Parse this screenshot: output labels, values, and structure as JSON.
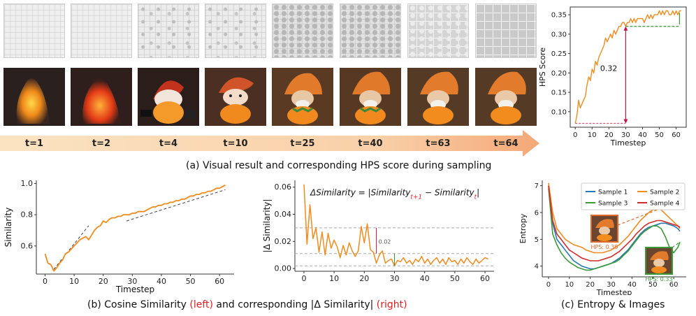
{
  "panel_a": {
    "steps": [
      "t=1",
      "t=2",
      "t=4",
      "t=10",
      "t=25",
      "t=40",
      "t=63",
      "t=64"
    ],
    "caption": "(a) Visual result and corresponding HPS score during sampling"
  },
  "panel_b": {
    "caption_prefix": "(b) Cosine Similarity ",
    "caption_left": "(left)",
    "caption_mid": " and corresponding |Δ Similarity| ",
    "caption_right": "(right)"
  },
  "panel_c": {
    "caption": "(c) Entropy & Images",
    "hps_badge_a": "HPS: 0.39",
    "hps_badge_b": "HPS: 0.33"
  },
  "colors": {
    "orange": "#f08c1e",
    "red": "#d32c2c",
    "green": "#3a9a3a",
    "blue": "#2878b8",
    "dashed": "#555555"
  },
  "chart_data": [
    {
      "id": "hps",
      "type": "line",
      "title": "",
      "xlabel": "Timestep",
      "ylabel": "HPS Score",
      "xlim": [
        -3,
        66
      ],
      "ylim": [
        0.06,
        0.37
      ],
      "xticks": [
        0,
        10,
        20,
        30,
        40,
        50,
        60
      ],
      "yticks": [
        0.1,
        0.15,
        0.2,
        0.25,
        0.3,
        0.35
      ],
      "ytick_labels": [
        "0.10",
        "0.15",
        "0.20",
        "0.25",
        "0.30",
        "0.35"
      ],
      "annotation": "0.32",
      "annotation_arrow": {
        "x": 30,
        "from": 0.07,
        "to": 0.32
      },
      "series": [
        {
          "name": "HPS",
          "x": [
            0,
            1,
            2,
            3,
            4,
            5,
            6,
            7,
            8,
            9,
            10,
            11,
            12,
            13,
            14,
            15,
            16,
            17,
            18,
            19,
            20,
            21,
            22,
            23,
            24,
            25,
            26,
            27,
            28,
            29,
            30,
            31,
            32,
            33,
            34,
            35,
            36,
            37,
            38,
            39,
            40,
            41,
            42,
            43,
            44,
            45,
            46,
            47,
            48,
            49,
            50,
            51,
            52,
            53,
            54,
            55,
            56,
            57,
            58,
            59,
            60,
            61,
            62,
            63
          ],
          "values": [
            0.07,
            0.09,
            0.13,
            0.11,
            0.12,
            0.13,
            0.14,
            0.17,
            0.19,
            0.18,
            0.21,
            0.2,
            0.23,
            0.22,
            0.24,
            0.25,
            0.26,
            0.27,
            0.29,
            0.28,
            0.29,
            0.3,
            0.29,
            0.31,
            0.3,
            0.31,
            0.32,
            0.32,
            0.33,
            0.33,
            0.32,
            0.33,
            0.33,
            0.34,
            0.33,
            0.34,
            0.33,
            0.34,
            0.34,
            0.34,
            0.34,
            0.33,
            0.34,
            0.35,
            0.34,
            0.35,
            0.34,
            0.35,
            0.35,
            0.35,
            0.36,
            0.35,
            0.36,
            0.35,
            0.36,
            0.36,
            0.35,
            0.35,
            0.36,
            0.35,
            0.36,
            0.35,
            0.36,
            0.36
          ]
        }
      ]
    },
    {
      "id": "similarity",
      "type": "line",
      "xlabel": "Timestep",
      "ylabel": "Similarity",
      "xlim": [
        -3,
        65
      ],
      "ylim": [
        0.42,
        1.02
      ],
      "xticks": [
        0,
        10,
        20,
        30,
        40,
        50,
        60
      ],
      "yticks": [
        0.6,
        0.8,
        1.0
      ],
      "ytick_labels": [
        "0.6",
        "0.8",
        "1.0"
      ],
      "series": [
        {
          "name": "Similarity",
          "x": [
            0,
            1,
            2,
            3,
            4,
            5,
            6,
            7,
            8,
            9,
            10,
            11,
            12,
            13,
            14,
            15,
            16,
            17,
            18,
            19,
            20,
            21,
            22,
            23,
            24,
            25,
            26,
            27,
            28,
            29,
            30,
            31,
            32,
            33,
            34,
            35,
            36,
            37,
            38,
            39,
            40,
            41,
            42,
            43,
            44,
            45,
            46,
            47,
            48,
            49,
            50,
            51,
            52,
            53,
            54,
            55,
            56,
            57,
            58,
            59,
            60,
            61,
            62
          ],
          "values": [
            0.55,
            0.49,
            0.48,
            0.44,
            0.46,
            0.49,
            0.51,
            0.55,
            0.56,
            0.58,
            0.6,
            0.62,
            0.64,
            0.65,
            0.66,
            0.64,
            0.67,
            0.7,
            0.72,
            0.73,
            0.76,
            0.75,
            0.77,
            0.78,
            0.78,
            0.79,
            0.79,
            0.8,
            0.8,
            0.8,
            0.81,
            0.81,
            0.82,
            0.82,
            0.82,
            0.83,
            0.84,
            0.85,
            0.85,
            0.86,
            0.86,
            0.87,
            0.87,
            0.88,
            0.88,
            0.89,
            0.89,
            0.9,
            0.9,
            0.91,
            0.92,
            0.92,
            0.93,
            0.93,
            0.94,
            0.94,
            0.95,
            0.95,
            0.96,
            0.97,
            0.97,
            0.98,
            0.99
          ]
        }
      ],
      "trend_lines": [
        {
          "x": [
            3,
            15
          ],
          "values": [
            0.45,
            0.73
          ]
        },
        {
          "x": [
            28,
            62
          ],
          "values": [
            0.76,
            0.96
          ]
        }
      ]
    },
    {
      "id": "delta_similarity",
      "type": "line",
      "xlabel": "",
      "ylabel": "|Δ Similarity|",
      "xlim": [
        -3,
        63
      ],
      "ylim": [
        -0.002,
        0.065
      ],
      "xticks": [
        0,
        10,
        20,
        30,
        40,
        50,
        60
      ],
      "yticks": [
        0.0,
        0.02,
        0.04,
        0.06
      ],
      "ytick_labels": [
        "0.00",
        "0.02",
        "0.04",
        "0.06"
      ],
      "formula_prefix": "ΔSimilarity = |Similarity",
      "formula_sub1": "t+1",
      "formula_mid": " − Similarity",
      "formula_sub2": "t",
      "formula_suffix": "|",
      "annotation": "0.02",
      "hlines": [
        0.03,
        0.011,
        0.002
      ],
      "series": [
        {
          "name": "|Δ Similarity|",
          "x": [
            0,
            1,
            2,
            3,
            4,
            5,
            6,
            7,
            8,
            9,
            10,
            11,
            12,
            13,
            14,
            15,
            16,
            17,
            18,
            19,
            20,
            21,
            22,
            23,
            24,
            25,
            26,
            27,
            28,
            29,
            30,
            31,
            32,
            33,
            34,
            35,
            36,
            37,
            38,
            39,
            40,
            41,
            42,
            43,
            44,
            45,
            46,
            47,
            48,
            49,
            50,
            51,
            52,
            53,
            54,
            55,
            56,
            57,
            58,
            59,
            60,
            61
          ],
          "values": [
            0.062,
            0.018,
            0.047,
            0.022,
            0.03,
            0.012,
            0.027,
            0.01,
            0.026,
            0.015,
            0.021,
            0.016,
            0.008,
            0.017,
            0.01,
            0.019,
            0.013,
            0.009,
            0.013,
            0.031,
            0.019,
            0.033,
            0.014,
            0.012,
            0.004,
            0.01,
            0.013,
            0.004,
            0.006,
            0.007,
            0.002,
            0.006,
            0.005,
            0.008,
            0.004,
            0.006,
            0.003,
            0.007,
            0.005,
            0.009,
            0.004,
            0.007,
            0.003,
            0.006,
            0.008,
            0.004,
            0.007,
            0.003,
            0.008,
            0.005,
            0.006,
            0.003,
            0.007,
            0.004,
            0.008,
            0.005,
            0.003,
            0.007,
            0.004,
            0.006,
            0.008,
            0.007
          ]
        }
      ]
    },
    {
      "id": "entropy",
      "type": "line",
      "xlabel": "Timestep",
      "ylabel": "Entropy",
      "xlim": [
        -3,
        66
      ],
      "ylim": [
        3.6,
        7.2
      ],
      "xticks": [
        0,
        10,
        20,
        30,
        40,
        50,
        60
      ],
      "yticks": [
        4,
        5,
        6,
        7
      ],
      "ytick_labels": [
        "4",
        "5",
        "6",
        "7"
      ],
      "legend_position": "top-right",
      "series": [
        {
          "name": "Sample 1",
          "color": "#2878b8",
          "x": [
            0,
            2,
            4,
            6,
            8,
            10,
            12,
            14,
            16,
            18,
            20,
            22,
            24,
            26,
            28,
            30,
            32,
            34,
            36,
            38,
            40,
            42,
            44,
            46,
            48,
            50,
            52,
            54,
            56,
            58,
            60,
            62,
            63
          ],
          "values": [
            7.0,
            5.6,
            5.0,
            4.8,
            4.6,
            4.4,
            4.2,
            4.1,
            4.0,
            3.95,
            3.9,
            3.9,
            3.95,
            4.0,
            4.05,
            4.1,
            4.2,
            4.3,
            4.45,
            4.6,
            4.8,
            5.0,
            5.2,
            5.35,
            5.45,
            5.5,
            5.55,
            5.6,
            5.6,
            5.55,
            5.5,
            5.4,
            5.3
          ]
        },
        {
          "name": "Sample 2",
          "color": "#f08c1e",
          "x": [
            0,
            2,
            4,
            6,
            8,
            10,
            12,
            14,
            16,
            18,
            20,
            22,
            24,
            26,
            28,
            30,
            32,
            34,
            36,
            38,
            40,
            42,
            44,
            46,
            48,
            50,
            52,
            54,
            56,
            58,
            60,
            62,
            63
          ],
          "values": [
            7.1,
            6.0,
            5.4,
            5.2,
            5.0,
            4.9,
            4.8,
            4.75,
            4.7,
            4.6,
            4.55,
            4.5,
            4.5,
            4.5,
            4.55,
            4.6,
            4.7,
            4.8,
            4.95,
            5.1,
            5.3,
            5.5,
            5.7,
            5.85,
            6.0,
            6.1,
            6.15,
            6.1,
            5.95,
            5.8,
            5.65,
            5.5,
            5.4
          ]
        },
        {
          "name": "Sample 3",
          "color": "#3a9a3a",
          "x": [
            0,
            2,
            4,
            6,
            8,
            10,
            12,
            14,
            16,
            18,
            20,
            22,
            24,
            26,
            28,
            30,
            32,
            34,
            36,
            38,
            40,
            42,
            44,
            46,
            48,
            50,
            52,
            54,
            56,
            58,
            60,
            62,
            63
          ],
          "values": [
            6.9,
            5.2,
            4.8,
            4.5,
            4.3,
            4.15,
            4.05,
            3.95,
            3.9,
            3.85,
            3.85,
            3.9,
            3.95,
            4.0,
            4.05,
            4.1,
            4.15,
            4.25,
            4.4,
            4.55,
            4.75,
            4.95,
            5.15,
            5.3,
            5.4,
            5.5,
            5.5,
            5.4,
            5.1,
            4.7,
            4.5,
            4.7,
            4.9
          ]
        },
        {
          "name": "Sample 4",
          "color": "#d32c2c",
          "x": [
            0,
            2,
            4,
            6,
            8,
            10,
            12,
            14,
            16,
            18,
            20,
            22,
            24,
            26,
            28,
            30,
            32,
            34,
            36,
            38,
            40,
            42,
            44,
            46,
            48,
            50,
            52,
            54,
            56,
            58,
            60,
            62,
            63
          ],
          "values": [
            7.0,
            5.7,
            5.2,
            5.0,
            4.8,
            4.6,
            4.5,
            4.4,
            4.3,
            4.25,
            4.2,
            4.2,
            4.2,
            4.25,
            4.3,
            4.35,
            4.45,
            4.55,
            4.7,
            4.85,
            5.0,
            5.2,
            5.35,
            5.5,
            5.6,
            5.65,
            5.7,
            5.7,
            5.65,
            5.6,
            5.55,
            5.5,
            5.45
          ]
        }
      ]
    }
  ]
}
